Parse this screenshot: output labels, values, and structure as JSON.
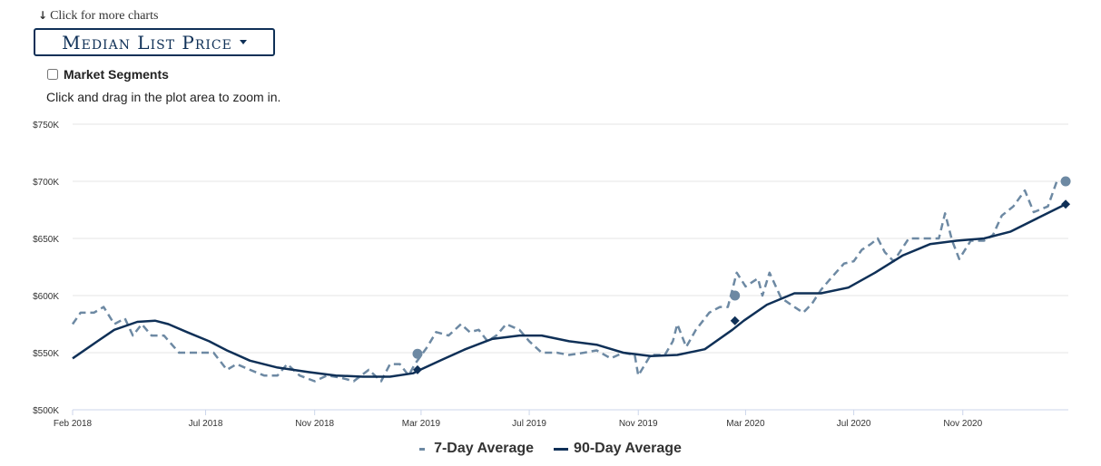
{
  "header": {
    "more_link": "Click for more charts",
    "dropdown_label": "Median List Price",
    "segments_label": "Market Segments",
    "zoom_note": "Click and drag in the plot area to zoom in."
  },
  "colors": {
    "series7": "#6d89a3",
    "series90": "#0f3057",
    "grid": "#e6e6e6"
  },
  "chart_data": {
    "type": "line",
    "ylim": [
      500000,
      750000
    ],
    "y_ticks": [
      500000,
      550000,
      600000,
      650000,
      700000,
      750000
    ],
    "y_tick_labels": [
      "$500K",
      "$550K",
      "$600K",
      "$650K",
      "$700K",
      "$750K"
    ],
    "xlim": [
      "2018-02-01",
      "2021-02-28"
    ],
    "x_ticks": [
      "2018-02-01",
      "2018-07-01",
      "2018-11-01",
      "2019-03-01",
      "2019-07-01",
      "2019-11-01",
      "2020-03-01",
      "2020-07-01",
      "2020-11-01"
    ],
    "x_tick_labels": [
      "Feb 2018",
      "Jul 2018",
      "Nov 2018",
      "Mar 2019",
      "Jul 2019",
      "Nov 2019",
      "Mar 2020",
      "Jul 2020",
      "Nov 2020"
    ],
    "legend": "bottom-center",
    "grid": true,
    "series": [
      {
        "name": "7-Day Average",
        "style": "dashed",
        "points": [
          [
            "2018-02-01",
            575000
          ],
          [
            "2018-02-10",
            585000
          ],
          [
            "2018-02-25",
            585000
          ],
          [
            "2018-03-08",
            590000
          ],
          [
            "2018-03-20",
            575000
          ],
          [
            "2018-04-01",
            580000
          ],
          [
            "2018-04-10",
            565000
          ],
          [
            "2018-04-20",
            575000
          ],
          [
            "2018-05-01",
            565000
          ],
          [
            "2018-05-15",
            565000
          ],
          [
            "2018-06-01",
            550000
          ],
          [
            "2018-06-20",
            550000
          ],
          [
            "2018-07-10",
            550000
          ],
          [
            "2018-07-25",
            535000
          ],
          [
            "2018-08-05",
            540000
          ],
          [
            "2018-08-20",
            535000
          ],
          [
            "2018-09-05",
            530000
          ],
          [
            "2018-09-20",
            530000
          ],
          [
            "2018-10-01",
            540000
          ],
          [
            "2018-10-15",
            530000
          ],
          [
            "2018-11-01",
            525000
          ],
          [
            "2018-11-15",
            530000
          ],
          [
            "2018-12-01",
            528000
          ],
          [
            "2018-12-15",
            525000
          ],
          [
            "2019-01-01",
            535000
          ],
          [
            "2019-01-15",
            525000
          ],
          [
            "2019-01-25",
            540000
          ],
          [
            "2019-02-05",
            540000
          ],
          [
            "2019-02-15",
            530000
          ],
          [
            "2019-02-22",
            540000
          ],
          [
            "2019-03-08",
            555000
          ],
          [
            "2019-03-18",
            568000
          ],
          [
            "2019-04-01",
            565000
          ],
          [
            "2019-04-15",
            575000
          ],
          [
            "2019-04-25",
            568000
          ],
          [
            "2019-05-05",
            570000
          ],
          [
            "2019-05-15",
            560000
          ],
          [
            "2019-05-25",
            565000
          ],
          [
            "2019-06-05",
            575000
          ],
          [
            "2019-06-20",
            570000
          ],
          [
            "2019-07-01",
            560000
          ],
          [
            "2019-07-15",
            550000
          ],
          [
            "2019-08-01",
            550000
          ],
          [
            "2019-08-15",
            548000
          ],
          [
            "2019-09-01",
            550000
          ],
          [
            "2019-09-15",
            552000
          ],
          [
            "2019-10-01",
            545000
          ],
          [
            "2019-10-15",
            550000
          ],
          [
            "2019-10-28",
            548000
          ],
          [
            "2019-11-01",
            530000
          ],
          [
            "2019-11-15",
            548000
          ],
          [
            "2019-12-01",
            548000
          ],
          [
            "2019-12-10",
            560000
          ],
          [
            "2019-12-15",
            575000
          ],
          [
            "2019-12-25",
            555000
          ],
          [
            "2020-01-05",
            570000
          ],
          [
            "2020-01-20",
            585000
          ],
          [
            "2020-02-01",
            590000
          ],
          [
            "2020-02-10",
            590000
          ],
          [
            "2020-02-20",
            620000
          ],
          [
            "2020-03-01",
            608000
          ],
          [
            "2020-03-15",
            615000
          ],
          [
            "2020-03-20",
            600000
          ],
          [
            "2020-03-28",
            620000
          ],
          [
            "2020-04-10",
            598000
          ],
          [
            "2020-04-25",
            590000
          ],
          [
            "2020-05-05",
            585000
          ],
          [
            "2020-05-15",
            593000
          ],
          [
            "2020-05-25",
            605000
          ],
          [
            "2020-06-05",
            615000
          ],
          [
            "2020-06-20",
            628000
          ],
          [
            "2020-07-01",
            630000
          ],
          [
            "2020-07-10",
            640000
          ],
          [
            "2020-07-20",
            645000
          ],
          [
            "2020-07-28",
            650000
          ],
          [
            "2020-08-05",
            638000
          ],
          [
            "2020-08-15",
            630000
          ],
          [
            "2020-09-01",
            650000
          ],
          [
            "2020-09-20",
            650000
          ],
          [
            "2020-10-05",
            650000
          ],
          [
            "2020-10-12",
            672000
          ],
          [
            "2020-10-20",
            648000
          ],
          [
            "2020-10-28",
            632000
          ],
          [
            "2020-11-10",
            648000
          ],
          [
            "2020-11-25",
            648000
          ],
          [
            "2020-12-05",
            653000
          ],
          [
            "2020-12-15",
            670000
          ],
          [
            "2020-12-28",
            678000
          ],
          [
            "2021-01-10",
            692000
          ],
          [
            "2021-01-20",
            673000
          ],
          [
            "2021-02-05",
            678000
          ],
          [
            "2021-02-15",
            700000
          ]
        ],
        "markers": [
          [
            "2019-02-25",
            549000
          ],
          [
            "2020-02-18",
            600000
          ],
          [
            "2021-02-25",
            700000
          ]
        ]
      },
      {
        "name": "90-Day Average",
        "style": "solid",
        "points": [
          [
            "2018-02-01",
            545000
          ],
          [
            "2018-03-01",
            560000
          ],
          [
            "2018-03-20",
            570000
          ],
          [
            "2018-04-15",
            577000
          ],
          [
            "2018-05-05",
            578000
          ],
          [
            "2018-05-20",
            575000
          ],
          [
            "2018-06-10",
            568000
          ],
          [
            "2018-07-05",
            560000
          ],
          [
            "2018-07-25",
            552000
          ],
          [
            "2018-08-20",
            543000
          ],
          [
            "2018-09-20",
            537000
          ],
          [
            "2018-10-25",
            533000
          ],
          [
            "2018-11-25",
            530000
          ],
          [
            "2018-12-25",
            529000
          ],
          [
            "2019-01-25",
            529000
          ],
          [
            "2019-02-20",
            532000
          ],
          [
            "2019-02-28",
            535000
          ],
          [
            "2019-03-25",
            544000
          ],
          [
            "2019-04-20",
            553000
          ],
          [
            "2019-05-20",
            562000
          ],
          [
            "2019-06-20",
            565000
          ],
          [
            "2019-07-15",
            565000
          ],
          [
            "2019-08-15",
            560000
          ],
          [
            "2019-09-15",
            557000
          ],
          [
            "2019-10-15",
            550000
          ],
          [
            "2019-11-15",
            547000
          ],
          [
            "2019-12-15",
            548000
          ],
          [
            "2020-01-15",
            553000
          ],
          [
            "2020-02-15",
            570000
          ],
          [
            "2020-02-28",
            578000
          ],
          [
            "2020-03-25",
            592000
          ],
          [
            "2020-04-25",
            602000
          ],
          [
            "2020-05-25",
            602000
          ],
          [
            "2020-06-25",
            607000
          ],
          [
            "2020-07-25",
            620000
          ],
          [
            "2020-08-25",
            635000
          ],
          [
            "2020-09-25",
            645000
          ],
          [
            "2020-10-25",
            648000
          ],
          [
            "2020-11-25",
            650000
          ],
          [
            "2020-12-25",
            656000
          ],
          [
            "2021-01-25",
            668000
          ],
          [
            "2021-02-25",
            680000
          ]
        ],
        "markers": [
          [
            "2019-02-25",
            535000
          ],
          [
            "2020-02-18",
            578000
          ],
          [
            "2021-02-25",
            680000
          ]
        ]
      }
    ]
  }
}
